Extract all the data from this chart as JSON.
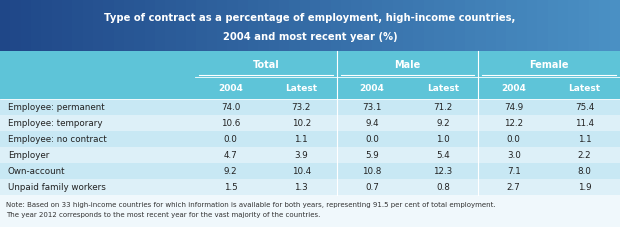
{
  "title_line1": "Type of contract as a percentage of employment, high-income countries,",
  "title_line2": "2004 and most recent year (%)",
  "col_groups": [
    "Total",
    "Male",
    "Female"
  ],
  "col_subheaders": [
    "2004",
    "Latest"
  ],
  "row_labels": [
    "Employee: permanent",
    "Employee: temporary",
    "Employee: no contract",
    "Employer",
    "Own-account",
    "Unpaid family workers"
  ],
  "data": [
    [
      74.0,
      73.2,
      73.1,
      71.2,
      74.9,
      75.4
    ],
    [
      10.6,
      10.2,
      9.4,
      9.2,
      12.2,
      11.4
    ],
    [
      0.0,
      1.1,
      0.0,
      1.0,
      0.0,
      1.1
    ],
    [
      4.7,
      3.9,
      5.9,
      5.4,
      3.0,
      2.2
    ],
    [
      9.2,
      10.4,
      10.8,
      12.3,
      7.1,
      8.0
    ],
    [
      1.5,
      1.3,
      0.7,
      0.8,
      2.7,
      1.9
    ]
  ],
  "note_line1": "Note: Based on 33 high-income countries for which information is available for both years, representing 91.5 per cent of total employment.",
  "note_line2": "The year 2012 corresponds to the most recent year for the vast majority of the countries.",
  "header_bg": "#1f4788",
  "header_bg_right": "#4a90c4",
  "subheader_bg": "#5ec4d8",
  "row_bg_even": "#c8e8f4",
  "row_bg_odd": "#ddf0f8",
  "header_text_color": "#ffffff",
  "subheader_text_color": "#ffffff",
  "row_label_color": "#222222",
  "data_text_color": "#222222",
  "note_text_color": "#333333",
  "note_bg": "#f0f8fc"
}
